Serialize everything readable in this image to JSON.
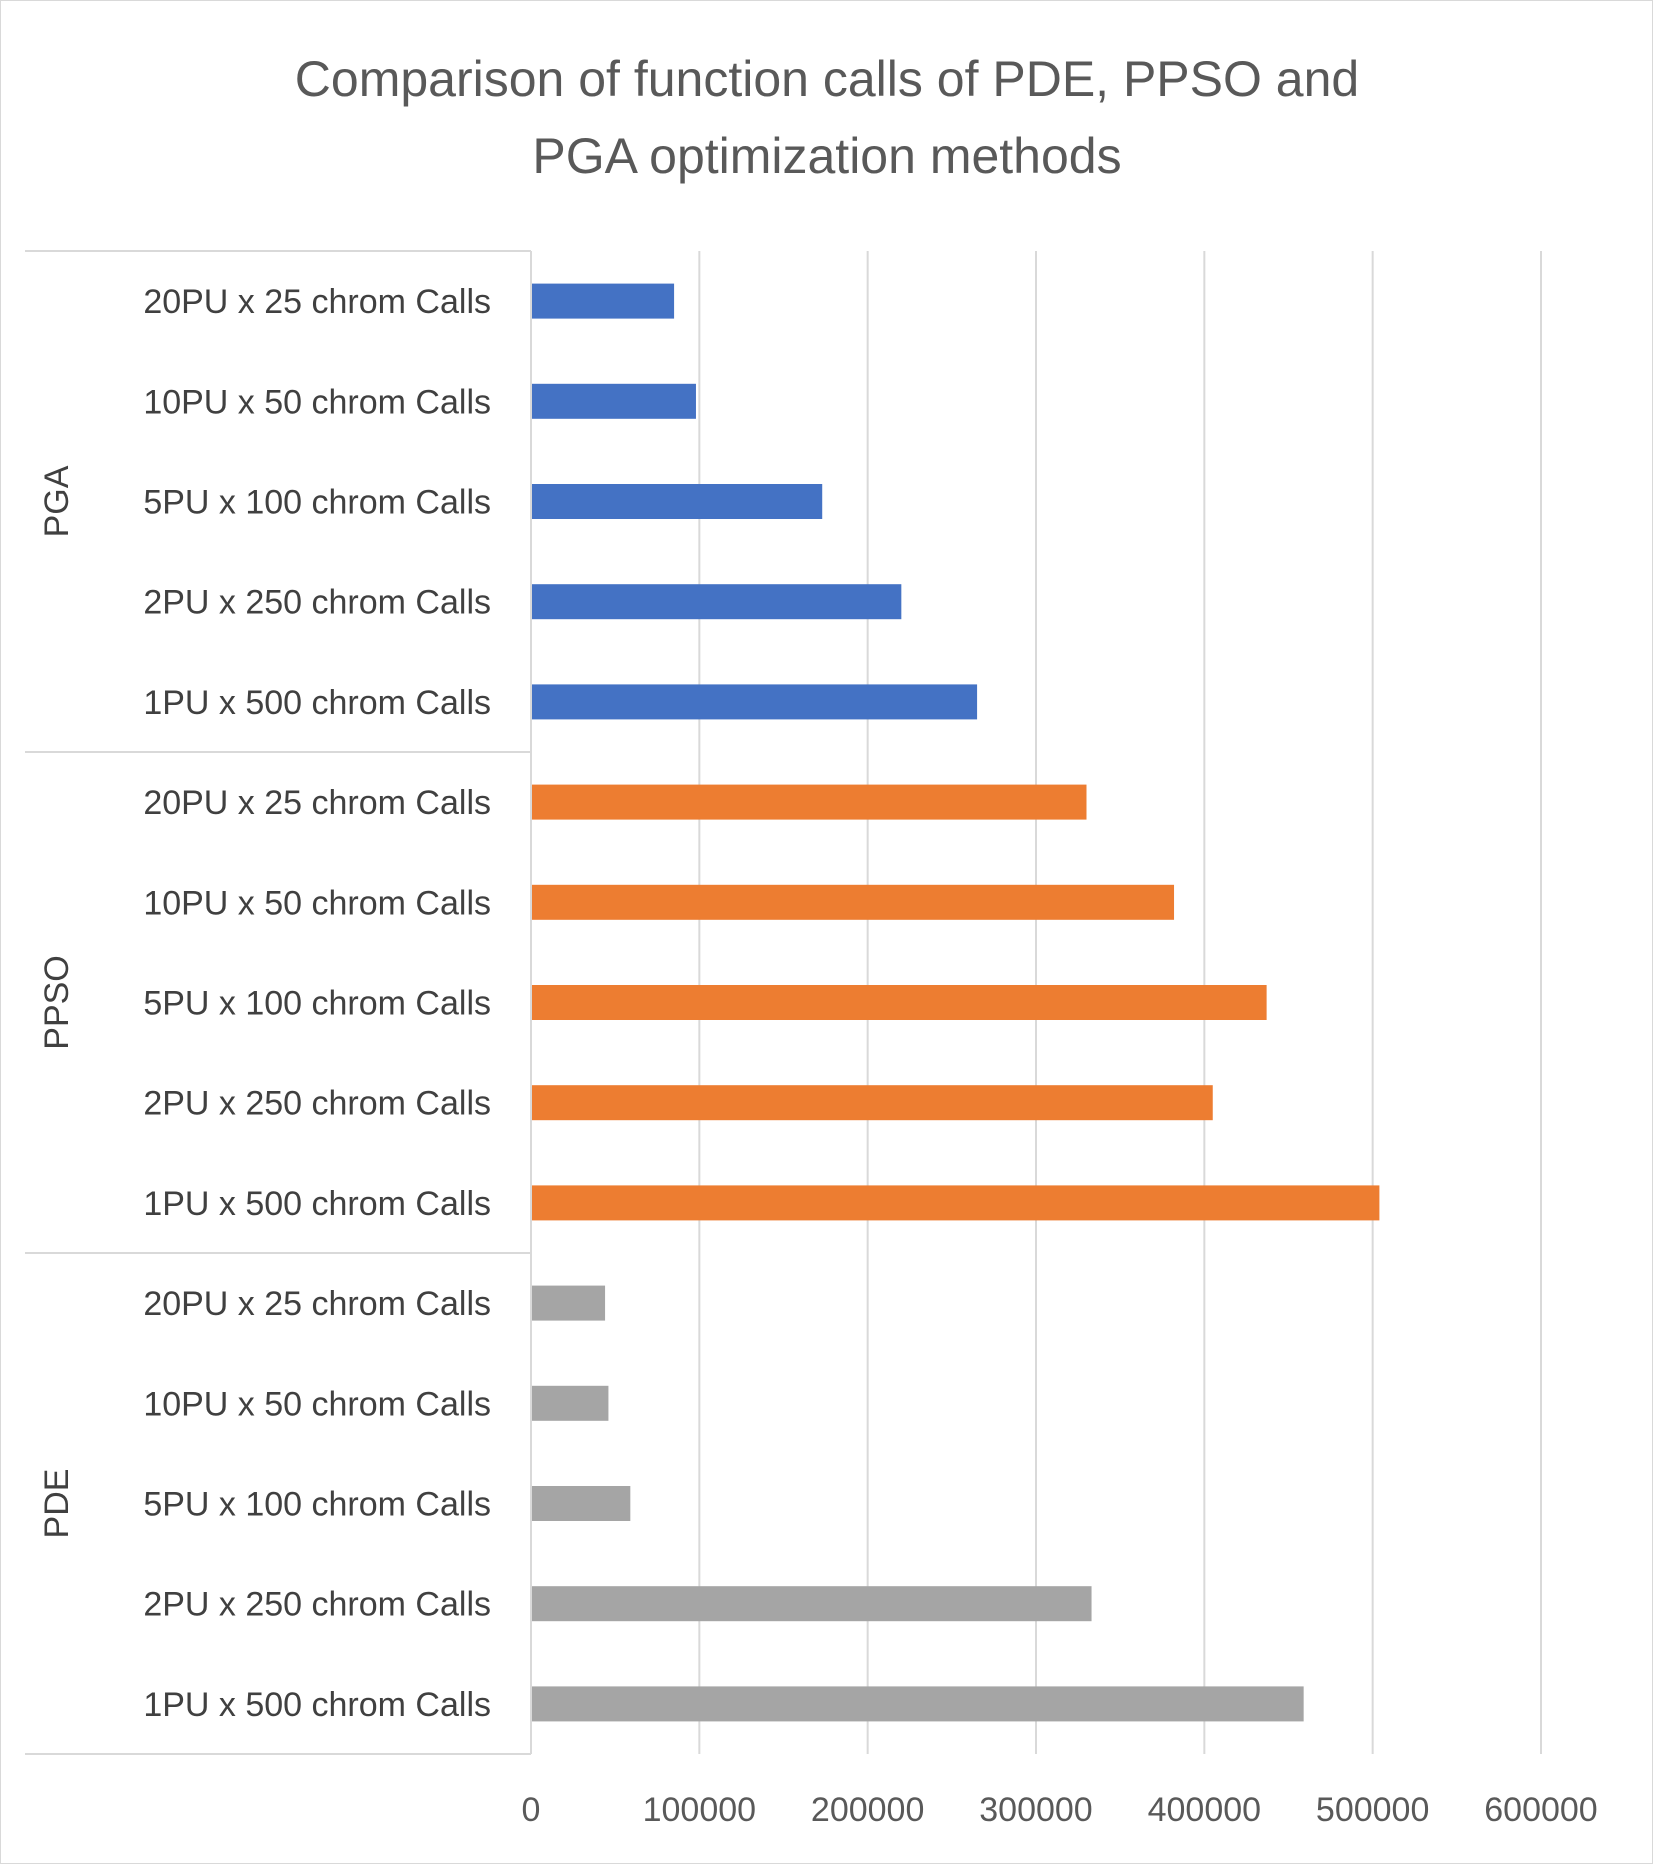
{
  "chart_data": {
    "type": "bar",
    "orientation": "horizontal",
    "title": "Comparison of function calls of PDE, PPSO and PGA optimization methods",
    "title_lines": [
      "Comparison of function calls of PDE, PPSO and",
      "PGA optimization methods"
    ],
    "xlabel": "",
    "ylabel": "",
    "xlim": [
      0,
      600000
    ],
    "x_ticks": [
      0,
      100000,
      200000,
      300000,
      400000,
      500000,
      600000
    ],
    "grid": true,
    "legend": "none",
    "groups": [
      {
        "name": "PGA",
        "color": "#4472c4",
        "categories": [
          "20PU x 25 chrom Calls",
          "10PU x 50 chrom Calls",
          "5PU x 100 chrom Calls",
          "2PU x 250 chrom Calls",
          "1PU x 500 chrom Calls"
        ],
        "values": [
          85000,
          98000,
          173000,
          220000,
          265000
        ]
      },
      {
        "name": "PPSO",
        "color": "#ed7d31",
        "categories": [
          "20PU x 25 chrom Calls",
          "10PU x 50 chrom Calls",
          "5PU x 100 chrom Calls",
          "2PU x 250 chrom Calls",
          "1PU x 500 chrom Calls"
        ],
        "values": [
          330000,
          382000,
          437000,
          405000,
          504000
        ]
      },
      {
        "name": "PDE",
        "color": "#a5a5a5",
        "categories": [
          "20PU x 25 chrom Calls",
          "10PU x 50 chrom Calls",
          "5PU x 100 chrom Calls",
          "2PU x 250 chrom Calls",
          "1PU x 500 chrom Calls"
        ],
        "values": [
          44000,
          46000,
          59000,
          333000,
          459000
        ]
      }
    ]
  }
}
